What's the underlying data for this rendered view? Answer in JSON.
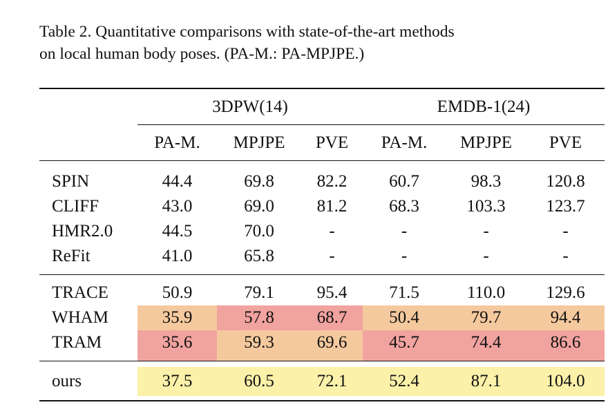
{
  "caption": {
    "line1": "Table 2.  Quantitative comparisons with state-of-the-art methods",
    "line2": "on local human body poses. (PA-M.: PA-MPJPE.)"
  },
  "colors": {
    "best": "#f1a39f",
    "second_best": "#f5c99e",
    "ours_highlight": "#fbf1a9"
  },
  "table": {
    "groups": [
      "3DPW(14)",
      "EMDB-1(24)"
    ],
    "columns": [
      "PA-M.",
      "MPJPE",
      "PVE",
      "PA-M.",
      "MPJPE",
      "PVE"
    ],
    "section1": [
      {
        "method": "SPIN",
        "values": [
          "44.4",
          "69.8",
          "82.2",
          "60.7",
          "98.3",
          "120.8"
        ]
      },
      {
        "method": "CLIFF",
        "values": [
          "43.0",
          "69.0",
          "81.2",
          "68.3",
          "103.3",
          "123.7"
        ]
      },
      {
        "method": "HMR2.0",
        "values": [
          "44.5",
          "70.0",
          "-",
          "-",
          "-",
          "-"
        ]
      },
      {
        "method": "ReFit",
        "values": [
          "41.0",
          "65.8",
          "-",
          "-",
          "-",
          "-"
        ]
      }
    ],
    "section2": [
      {
        "method": "TRACE",
        "values": [
          "50.9",
          "79.1",
          "95.4",
          "71.5",
          "110.0",
          "129.6"
        ]
      },
      {
        "method": "WHAM",
        "values": [
          "35.9",
          "57.8",
          "68.7",
          "50.4",
          "79.7",
          "94.4"
        ]
      },
      {
        "method": "TRAM",
        "values": [
          "35.6",
          "59.3",
          "69.6",
          "45.7",
          "74.4",
          "86.6"
        ]
      }
    ],
    "ours": {
      "method": "ours",
      "values": [
        "37.5",
        "60.5",
        "72.1",
        "52.4",
        "87.1",
        "104.0"
      ]
    }
  }
}
